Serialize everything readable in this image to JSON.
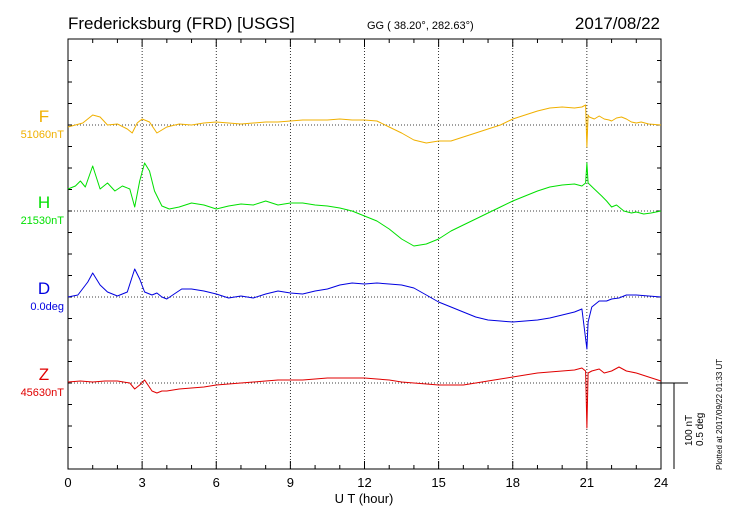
{
  "chart_data": {
    "type": "line",
    "title": "Fredericksburg (FRD)  [USGS]",
    "coords": "GG ( 38.20°, 282.63°)",
    "date": "2017/08/22",
    "xlabel": "U T (hour)",
    "xlim": [
      0,
      24
    ],
    "x_ticks": [
      "0",
      "3",
      "6",
      "9",
      "12",
      "15",
      "18",
      "21",
      "24"
    ],
    "grid": true,
    "scale_bar": {
      "label1": "100 nT",
      "label2": "0.5 deg"
    },
    "footer": "Plotted at 2017/09/22 01:33 UT",
    "series": [
      {
        "name": "F",
        "baseline": "51060nT",
        "color": "#f0b000",
        "points": [
          [
            0,
            2
          ],
          [
            0.3,
            0
          ],
          [
            0.6,
            -2
          ],
          [
            1.0,
            -10
          ],
          [
            1.3,
            -8
          ],
          [
            1.6,
            0
          ],
          [
            2.0,
            -1
          ],
          [
            2.4,
            4
          ],
          [
            2.6,
            8
          ],
          [
            2.8,
            -2
          ],
          [
            3.0,
            -6
          ],
          [
            3.3,
            -3
          ],
          [
            3.6,
            8
          ],
          [
            4.0,
            2
          ],
          [
            4.5,
            -1
          ],
          [
            5.0,
            0
          ],
          [
            5.5,
            -2
          ],
          [
            6.0,
            -3
          ],
          [
            6.5,
            -2
          ],
          [
            7.0,
            -1
          ],
          [
            7.5,
            -2
          ],
          [
            8.0,
            -3
          ],
          [
            8.5,
            -3
          ],
          [
            9.0,
            -4
          ],
          [
            9.5,
            -5
          ],
          [
            10.0,
            -5
          ],
          [
            10.5,
            -5
          ],
          [
            11.0,
            -6
          ],
          [
            11.5,
            -5
          ],
          [
            12.0,
            -5
          ],
          [
            12.5,
            -4
          ],
          [
            13.0,
            2
          ],
          [
            13.5,
            8
          ],
          [
            14.0,
            15
          ],
          [
            14.5,
            18
          ],
          [
            15.0,
            16
          ],
          [
            15.5,
            16
          ],
          [
            16.0,
            12
          ],
          [
            16.5,
            8
          ],
          [
            17.0,
            4
          ],
          [
            17.5,
            0
          ],
          [
            18.0,
            -6
          ],
          [
            18.5,
            -10
          ],
          [
            19.0,
            -14
          ],
          [
            19.5,
            -17
          ],
          [
            20.0,
            -18
          ],
          [
            20.5,
            -17
          ],
          [
            20.8,
            -18
          ],
          [
            20.95,
            -20
          ],
          [
            21.0,
            22
          ],
          [
            21.05,
            -10
          ],
          [
            21.1,
            -8
          ],
          [
            21.3,
            -6
          ],
          [
            21.5,
            -9
          ],
          [
            21.7,
            -6
          ],
          [
            21.9,
            -5
          ],
          [
            22.0,
            -4
          ],
          [
            22.2,
            -7
          ],
          [
            22.4,
            -8
          ],
          [
            22.6,
            -6
          ],
          [
            22.8,
            -3
          ],
          [
            23.0,
            -2
          ],
          [
            23.2,
            -3
          ],
          [
            23.5,
            -1
          ],
          [
            24.0,
            0
          ]
        ]
      },
      {
        "name": "H",
        "baseline": "21530nT",
        "color": "#00e000",
        "points": [
          [
            0,
            -22
          ],
          [
            0.3,
            -25
          ],
          [
            0.5,
            -30
          ],
          [
            0.7,
            -24
          ],
          [
            1.0,
            -45
          ],
          [
            1.3,
            -22
          ],
          [
            1.6,
            -28
          ],
          [
            1.9,
            -20
          ],
          [
            2.2,
            -25
          ],
          [
            2.5,
            -22
          ],
          [
            2.7,
            -4
          ],
          [
            2.9,
            -30
          ],
          [
            3.1,
            -48
          ],
          [
            3.3,
            -40
          ],
          [
            3.5,
            -20
          ],
          [
            3.8,
            -5
          ],
          [
            4.1,
            -2
          ],
          [
            4.5,
            -4
          ],
          [
            5.0,
            -8
          ],
          [
            5.5,
            -6
          ],
          [
            6.0,
            -2
          ],
          [
            6.5,
            -5
          ],
          [
            7.0,
            -7
          ],
          [
            7.5,
            -6
          ],
          [
            8.0,
            -10
          ],
          [
            8.5,
            -6
          ],
          [
            9.0,
            -8
          ],
          [
            9.5,
            -8
          ],
          [
            10.0,
            -6
          ],
          [
            10.5,
            -5
          ],
          [
            11.0,
            -3
          ],
          [
            11.5,
            0
          ],
          [
            12.0,
            5
          ],
          [
            12.5,
            10
          ],
          [
            13.0,
            18
          ],
          [
            13.5,
            28
          ],
          [
            14.0,
            35
          ],
          [
            14.5,
            33
          ],
          [
            15.0,
            28
          ],
          [
            15.5,
            20
          ],
          [
            16.0,
            14
          ],
          [
            16.5,
            8
          ],
          [
            17.0,
            2
          ],
          [
            17.5,
            -4
          ],
          [
            18.0,
            -10
          ],
          [
            18.5,
            -15
          ],
          [
            19.0,
            -20
          ],
          [
            19.5,
            -24
          ],
          [
            20.0,
            -26
          ],
          [
            20.5,
            -27
          ],
          [
            20.8,
            -25
          ],
          [
            20.95,
            -28
          ],
          [
            21.0,
            -48
          ],
          [
            21.05,
            -28
          ],
          [
            21.3,
            -22
          ],
          [
            21.6,
            -15
          ],
          [
            21.8,
            -10
          ],
          [
            22.0,
            -4
          ],
          [
            22.2,
            -6
          ],
          [
            22.5,
            0
          ],
          [
            22.8,
            2
          ],
          [
            23.0,
            1
          ],
          [
            23.3,
            3
          ],
          [
            23.6,
            2
          ],
          [
            24.0,
            0
          ]
        ]
      },
      {
        "name": "D",
        "baseline": "0.0deg",
        "color": "#0000e0",
        "points": [
          [
            0,
            0
          ],
          [
            0.4,
            -2
          ],
          [
            0.8,
            -15
          ],
          [
            1.0,
            -24
          ],
          [
            1.3,
            -12
          ],
          [
            1.6,
            -5
          ],
          [
            2.0,
            -1
          ],
          [
            2.4,
            -5
          ],
          [
            2.7,
            -28
          ],
          [
            2.9,
            -18
          ],
          [
            3.1,
            -5
          ],
          [
            3.4,
            -2
          ],
          [
            3.6,
            -4
          ],
          [
            3.8,
            0
          ],
          [
            4.0,
            2
          ],
          [
            4.3,
            -3
          ],
          [
            4.6,
            -8
          ],
          [
            5.0,
            -8
          ],
          [
            5.5,
            -6
          ],
          [
            6.0,
            -3
          ],
          [
            6.5,
            1
          ],
          [
            7.0,
            -1
          ],
          [
            7.5,
            1
          ],
          [
            8.0,
            -3
          ],
          [
            8.5,
            -6
          ],
          [
            9.0,
            -4
          ],
          [
            9.5,
            -3
          ],
          [
            10.0,
            -6
          ],
          [
            10.5,
            -8
          ],
          [
            11.0,
            -12
          ],
          [
            11.5,
            -14
          ],
          [
            12.0,
            -13
          ],
          [
            12.5,
            -14
          ],
          [
            13.0,
            -13
          ],
          [
            13.5,
            -12
          ],
          [
            14.0,
            -9
          ],
          [
            14.5,
            -2
          ],
          [
            15.0,
            5
          ],
          [
            15.5,
            10
          ],
          [
            16.0,
            15
          ],
          [
            16.5,
            20
          ],
          [
            17.0,
            23
          ],
          [
            17.5,
            24
          ],
          [
            18.0,
            25
          ],
          [
            18.5,
            24
          ],
          [
            19.0,
            23
          ],
          [
            19.5,
            21
          ],
          [
            20.0,
            18
          ],
          [
            20.5,
            15
          ],
          [
            20.8,
            12
          ],
          [
            21.0,
            52
          ],
          [
            21.05,
            25
          ],
          [
            21.2,
            10
          ],
          [
            21.5,
            4
          ],
          [
            21.8,
            4
          ],
          [
            22.0,
            2
          ],
          [
            22.3,
            1
          ],
          [
            22.6,
            -2
          ],
          [
            23.0,
            -2
          ],
          [
            23.5,
            -1
          ],
          [
            24.0,
            0
          ]
        ]
      },
      {
        "name": "Z",
        "baseline": "45630nT",
        "color": "#e00000",
        "points": [
          [
            0,
            -1
          ],
          [
            0.5,
            -2
          ],
          [
            1.0,
            -1
          ],
          [
            1.5,
            -2
          ],
          [
            2.0,
            -2
          ],
          [
            2.5,
            0
          ],
          [
            2.7,
            6
          ],
          [
            2.9,
            2
          ],
          [
            3.1,
            -3
          ],
          [
            3.4,
            8
          ],
          [
            3.6,
            10
          ],
          [
            3.8,
            8
          ],
          [
            4.0,
            8
          ],
          [
            4.5,
            6
          ],
          [
            5.0,
            5
          ],
          [
            5.5,
            4
          ],
          [
            6.0,
            2
          ],
          [
            6.5,
            1
          ],
          [
            7.0,
            0
          ],
          [
            7.5,
            -1
          ],
          [
            8.0,
            -2
          ],
          [
            8.5,
            -3
          ],
          [
            9.0,
            -3
          ],
          [
            9.5,
            -3
          ],
          [
            10.0,
            -4
          ],
          [
            10.5,
            -5
          ],
          [
            11.0,
            -5
          ],
          [
            11.5,
            -5
          ],
          [
            12.0,
            -5
          ],
          [
            12.5,
            -4
          ],
          [
            13.0,
            -3
          ],
          [
            13.5,
            -1
          ],
          [
            14.0,
            0
          ],
          [
            14.5,
            1
          ],
          [
            15.0,
            2
          ],
          [
            15.5,
            2
          ],
          [
            16.0,
            2
          ],
          [
            16.5,
            0
          ],
          [
            17.0,
            -2
          ],
          [
            17.5,
            -4
          ],
          [
            18.0,
            -6
          ],
          [
            18.5,
            -8
          ],
          [
            19.0,
            -10
          ],
          [
            19.5,
            -11
          ],
          [
            20.0,
            -12
          ],
          [
            20.5,
            -13
          ],
          [
            20.8,
            -15
          ],
          [
            20.95,
            -12
          ],
          [
            21.0,
            45
          ],
          [
            21.05,
            -10
          ],
          [
            21.2,
            -12
          ],
          [
            21.5,
            -14
          ],
          [
            21.7,
            -10
          ],
          [
            22.0,
            -12
          ],
          [
            22.3,
            -16
          ],
          [
            22.6,
            -12
          ],
          [
            23.0,
            -10
          ],
          [
            23.5,
            -6
          ],
          [
            24.0,
            -2
          ]
        ]
      }
    ]
  }
}
